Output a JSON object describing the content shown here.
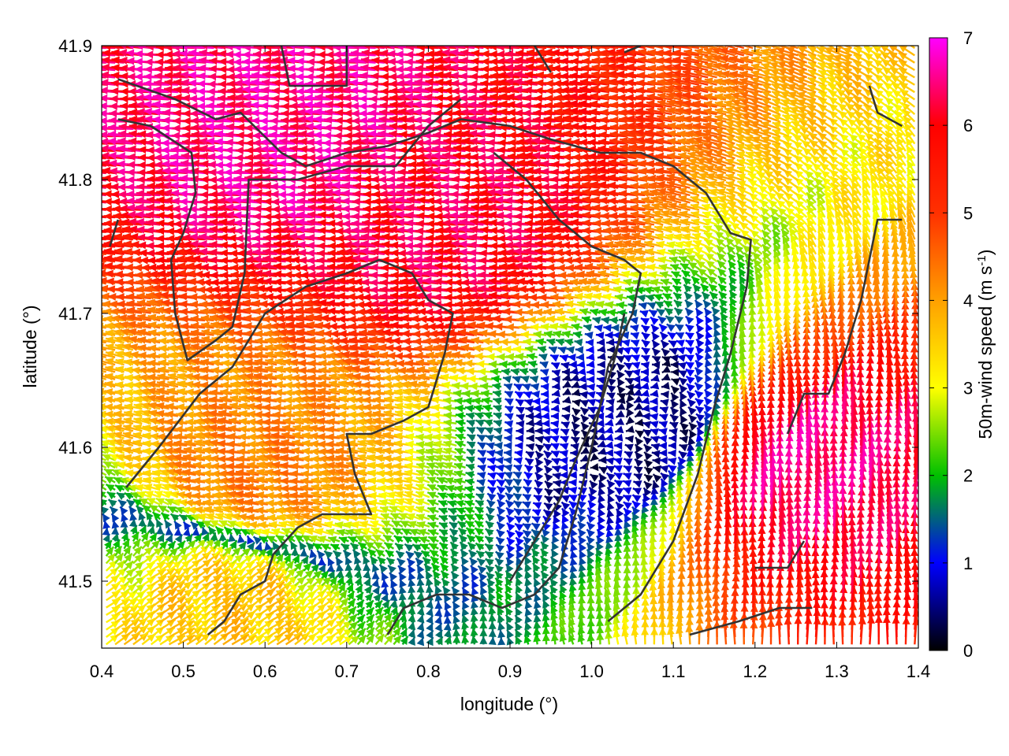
{
  "chart_data": {
    "type": "vector_field",
    "xlabel": "longitude (°)",
    "ylabel": "latitude (°)",
    "xlim": [
      0.4,
      1.4
    ],
    "ylim": [
      41.45,
      41.9
    ],
    "xticks": [
      0.4,
      0.5,
      0.6,
      0.7,
      0.8,
      0.9,
      1.0,
      1.1,
      1.2,
      1.3,
      1.4
    ],
    "xtick_labels": [
      "0.4",
      "0.5",
      "0.6",
      "0.7",
      "0.8",
      "0.9",
      "1.0",
      "1.1",
      "1.2",
      "1.3",
      "1.4"
    ],
    "yticks": [
      41.5,
      41.6,
      41.7,
      41.8,
      41.9
    ],
    "ytick_labels": [
      "41.5",
      "41.6",
      "41.7",
      "41.8",
      "41.9"
    ],
    "colorbar": {
      "label_main": "50m-wind speed (m s",
      "label_sup": "-1",
      "label_end": ")",
      "range": [
        0,
        7
      ],
      "ticks": [
        0,
        1,
        2,
        3,
        4,
        5,
        6,
        7
      ],
      "tick_labels": [
        "0",
        "1",
        "2",
        "3",
        "4",
        "5",
        "6",
        "7"
      ],
      "palette": [
        "#000000",
        "#0000ff",
        "#00c000",
        "#ffff00",
        "#ffa000",
        "#ff0000",
        "#ff00ff"
      ]
    },
    "grid": {
      "spacing_lon": 0.011,
      "spacing_lat": 0.0055
    },
    "wind_field": {
      "regions": [
        {
          "name": "strong westward flow north",
          "center": [
            0.65,
            41.83
          ],
          "u": -6.5,
          "v": 0.4
        },
        {
          "name": "core jet",
          "center": [
            0.85,
            41.76
          ],
          "u": -6.2,
          "v": 0.5
        },
        {
          "name": "moderate westerly south",
          "center": [
            0.6,
            41.58
          ],
          "u": -4.3,
          "v": 0.6
        },
        {
          "name": "calm valley",
          "center": [
            1.05,
            41.62
          ],
          "u": -0.5,
          "v": 0.0
        },
        {
          "name": "northward flow southeast",
          "center": [
            1.25,
            41.58
          ],
          "u": 0.3,
          "v": 6.5
        },
        {
          "name": "swirl southwest",
          "center": [
            0.55,
            41.48
          ],
          "u": 3.0,
          "v": 2.0
        }
      ]
    },
    "coastlines": [
      [
        [
          0.42,
          41.875
        ],
        [
          0.49,
          41.86
        ],
        [
          0.54,
          41.845
        ],
        [
          0.57,
          41.85
        ],
        [
          0.62,
          41.82
        ],
        [
          0.65,
          41.81
        ],
        [
          0.7,
          41.82
        ],
        [
          0.75,
          41.825
        ],
        [
          0.8,
          41.835
        ],
        [
          0.84,
          41.845
        ],
        [
          0.9,
          41.84
        ],
        [
          0.95,
          41.83
        ],
        [
          1.01,
          41.82
        ],
        [
          1.06,
          41.82
        ],
        [
          1.1,
          41.81
        ],
        [
          1.14,
          41.79
        ],
        [
          1.17,
          41.76
        ],
        [
          1.195,
          41.755
        ],
        [
          1.19,
          41.72
        ],
        [
          1.17,
          41.67
        ],
        [
          1.15,
          41.63
        ],
        [
          1.13,
          41.58
        ],
        [
          1.1,
          41.53
        ],
        [
          1.06,
          41.49
        ],
        [
          1.02,
          41.47
        ]
      ],
      [
        [
          0.42,
          41.845
        ],
        [
          0.46,
          41.84
        ],
        [
          0.51,
          41.82
        ],
        [
          0.515,
          41.79
        ],
        [
          0.5,
          41.76
        ],
        [
          0.485,
          41.74
        ],
        [
          0.49,
          41.7
        ],
        [
          0.505,
          41.665
        ],
        [
          0.54,
          41.68
        ],
        [
          0.56,
          41.69
        ],
        [
          0.575,
          41.73
        ],
        [
          0.58,
          41.8
        ],
        [
          0.64,
          41.8
        ],
        [
          0.7,
          41.81
        ],
        [
          0.76,
          41.81
        ],
        [
          0.8,
          41.84
        ],
        [
          0.84,
          41.86
        ]
      ],
      [
        [
          0.43,
          41.57
        ],
        [
          0.47,
          41.6
        ],
        [
          0.52,
          41.64
        ],
        [
          0.56,
          41.66
        ],
        [
          0.6,
          41.7
        ],
        [
          0.65,
          41.72
        ],
        [
          0.7,
          41.73
        ],
        [
          0.74,
          41.74
        ],
        [
          0.78,
          41.73
        ],
        [
          0.8,
          41.71
        ],
        [
          0.83,
          41.7
        ],
        [
          0.82,
          41.67
        ],
        [
          0.8,
          41.63
        ],
        [
          0.77,
          41.62
        ],
        [
          0.73,
          41.61
        ],
        [
          0.7,
          41.61
        ],
        [
          0.71,
          41.58
        ],
        [
          0.73,
          41.55
        ],
        [
          0.7,
          41.55
        ],
        [
          0.67,
          41.55
        ],
        [
          0.64,
          41.54
        ],
        [
          0.61,
          41.52
        ],
        [
          0.6,
          41.5
        ],
        [
          0.57,
          41.49
        ],
        [
          0.55,
          41.47
        ],
        [
          0.53,
          41.46
        ]
      ],
      [
        [
          0.75,
          41.46
        ],
        [
          0.77,
          41.48
        ],
        [
          0.81,
          41.49
        ],
        [
          0.85,
          41.49
        ],
        [
          0.89,
          41.48
        ],
        [
          0.93,
          41.49
        ],
        [
          0.96,
          41.51
        ],
        [
          0.98,
          41.55
        ],
        [
          1.0,
          41.6
        ],
        [
          1.02,
          41.66
        ],
        [
          1.05,
          41.7
        ],
        [
          1.06,
          41.73
        ],
        [
          1.04,
          41.74
        ],
        [
          1.0,
          41.75
        ],
        [
          0.96,
          41.77
        ],
        [
          0.92,
          41.8
        ],
        [
          0.88,
          41.82
        ]
      ],
      [
        [
          0.9,
          41.5
        ],
        [
          0.93,
          41.53
        ],
        [
          0.96,
          41.56
        ],
        [
          0.98,
          41.59
        ],
        [
          1.01,
          41.63
        ],
        [
          1.03,
          41.67
        ],
        [
          1.04,
          41.7
        ]
      ],
      [
        [
          1.12,
          41.46
        ],
        [
          1.18,
          41.47
        ],
        [
          1.23,
          41.48
        ],
        [
          1.27,
          41.48
        ]
      ],
      [
        [
          1.2,
          41.51
        ],
        [
          1.24,
          41.51
        ],
        [
          1.26,
          41.53
        ]
      ],
      [
        [
          1.24,
          41.61
        ],
        [
          1.26,
          41.64
        ],
        [
          1.29,
          41.64
        ],
        [
          1.31,
          41.67
        ],
        [
          1.33,
          41.71
        ],
        [
          1.34,
          41.74
        ],
        [
          1.35,
          41.77
        ],
        [
          1.38,
          41.77
        ]
      ],
      [
        [
          1.34,
          41.87
        ],
        [
          1.35,
          41.85
        ],
        [
          1.38,
          41.84
        ]
      ],
      [
        [
          0.62,
          41.9
        ],
        [
          0.63,
          41.87
        ],
        [
          0.67,
          41.87
        ],
        [
          0.7,
          41.87
        ],
        [
          0.7,
          41.9
        ]
      ],
      [
        [
          0.41,
          41.75
        ],
        [
          0.42,
          41.77
        ]
      ],
      [
        [
          0.93,
          41.9
        ],
        [
          0.95,
          41.88
        ]
      ],
      [
        [
          1.04,
          41.895
        ],
        [
          1.06,
          41.9
        ]
      ]
    ]
  }
}
